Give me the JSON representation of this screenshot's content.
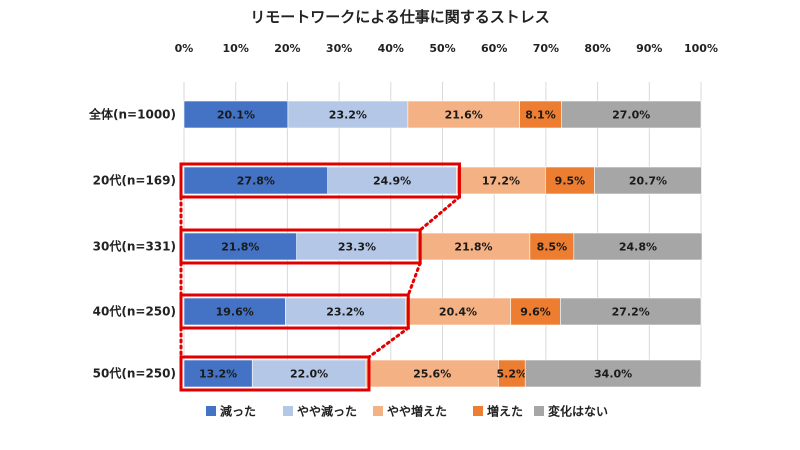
{
  "chart_data": {
    "type": "bar",
    "orientation": "horizontal",
    "stacked": true,
    "title": "リモートワークによる仕事に関するストレス",
    "xlim": [
      0,
      100
    ],
    "x_ticks": [
      "0%",
      "10%",
      "20%",
      "30%",
      "40%",
      "50%",
      "60%",
      "70%",
      "80%",
      "90%",
      "100%"
    ],
    "grid": true,
    "legend_position": "bottom",
    "categories": [
      "全体(n=1000)",
      "20代(n=169)",
      "30代(n=331)",
      "40代(n=250)",
      "50代(n=250)"
    ],
    "series": [
      {
        "name": "減った",
        "color": "#4472c4",
        "values": [
          20.1,
          27.8,
          21.8,
          19.6,
          13.2
        ],
        "labels": [
          "20.1%",
          "27.8%",
          "21.8%",
          "19.6%",
          "13.2%"
        ]
      },
      {
        "name": "やや減った",
        "color": "#b4c7e7",
        "values": [
          23.2,
          24.9,
          23.3,
          23.2,
          22.0
        ],
        "labels": [
          "23.2%",
          "24.9%",
          "23.3%",
          "23.2%",
          "22.0%"
        ]
      },
      {
        "name": "やや増えた",
        "color": "#f4b183",
        "values": [
          21.6,
          17.2,
          21.8,
          20.4,
          25.6
        ],
        "labels": [
          "21.6%",
          "17.2%",
          "21.8%",
          "20.4%",
          "25.6%"
        ]
      },
      {
        "name": "増えた",
        "color": "#ed7d31",
        "values": [
          8.1,
          9.5,
          8.5,
          9.6,
          5.2
        ],
        "labels": [
          "8.1%",
          "9.5%",
          "8.5%",
          "9.6%",
          "5.2%"
        ]
      },
      {
        "name": "変化はない",
        "color": "#a6a6a6",
        "values": [
          27.0,
          20.7,
          24.8,
          27.2,
          34.0
        ],
        "labels": [
          "27.0%",
          "20.7%",
          "24.8%",
          "27.2%",
          "34.0%"
        ]
      }
    ],
    "highlight": {
      "color": "#e00000",
      "categories": [
        1,
        2,
        3,
        4
      ],
      "series_count": 2,
      "connectors": "dotted"
    }
  }
}
